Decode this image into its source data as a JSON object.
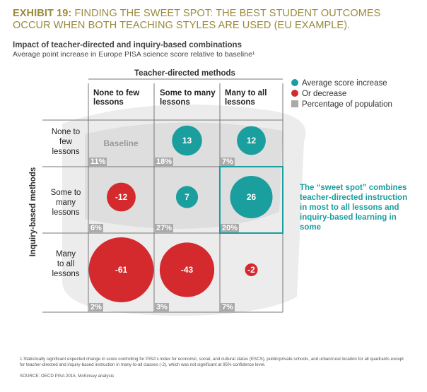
{
  "exhibit": {
    "label": "EXHIBIT 19:",
    "title": "FINDING THE SWEET SPOT: THE BEST STUDENT OUTCOMES OCCUR WHEN BOTH TEACHING STYLES ARE USED (EU EXAMPLE).",
    "subtitle": "Impact of teacher-directed and inquiry-based combinations",
    "subtitle2": "Average point increase in Europe PISA science score relative to baseline¹"
  },
  "axes": {
    "column_axis": "Teacher-directed methods",
    "row_axis": "Inquiry-based methods"
  },
  "columns": [
    "None to few\nlessons",
    "Some to many\nlessons",
    "Many to all\nlessons"
  ],
  "rows": [
    "None to\nfew\nlessons",
    "Some to\nmany\nlessons",
    "Many\nto all\nlessons"
  ],
  "baseline_label": "Baseline",
  "legend": [
    {
      "label": "Average score increase",
      "color": "#1a9e9e",
      "shape": "circle"
    },
    {
      "label": "Or decrease",
      "color": "#d42a2e",
      "shape": "circle"
    },
    {
      "label": "Percentage of population",
      "color": "#aaaaaa",
      "shape": "square"
    }
  ],
  "callout": "The “sweet spot” combines teacher-directed instruction in most to all lessons and inquiry-based learning in some",
  "footnote": "1 Statistically significant expected change in score controlling for PISA's index for economic, social, and cultural status (ESCS), public/private schools, and urban/rural location for all quadrants except for teacher-directed and inquiry-based instruction in many-to-all classes (-2), which was not significant at 95% confidence level.",
  "source": "SOURCE: OECD PISA 2015, McKinsey analysis",
  "colors": {
    "increase": "#1a9e9e",
    "decrease": "#d42a2e",
    "population": "#aaaaaa",
    "highlight": "#1a9e9e"
  },
  "chart_data": {
    "type": "bubble-matrix",
    "title": "Impact of teacher-directed and inquiry-based combinations",
    "xlabel": "Teacher-directed methods",
    "ylabel": "Inquiry-based methods",
    "x_categories": [
      "None to few lessons",
      "Some to many lessons",
      "Many to all lessons"
    ],
    "y_categories": [
      "None to few lessons",
      "Some to many lessons",
      "Many to all lessons"
    ],
    "cells": [
      {
        "row": 0,
        "col": 0,
        "value": null,
        "label": "Baseline",
        "population_pct": "11%"
      },
      {
        "row": 0,
        "col": 1,
        "value": 13,
        "label": "13",
        "population_pct": "18%"
      },
      {
        "row": 0,
        "col": 2,
        "value": 12,
        "label": "12",
        "population_pct": "7%"
      },
      {
        "row": 1,
        "col": 0,
        "value": -12,
        "label": "-12",
        "population_pct": "6%"
      },
      {
        "row": 1,
        "col": 1,
        "value": 7,
        "label": "7",
        "population_pct": "27%"
      },
      {
        "row": 1,
        "col": 2,
        "value": 26,
        "label": "26",
        "population_pct": "20%",
        "highlight": true
      },
      {
        "row": 2,
        "col": 0,
        "value": -61,
        "label": "-61",
        "population_pct": "2%"
      },
      {
        "row": 2,
        "col": 1,
        "value": -43,
        "label": "-43",
        "population_pct": "3%"
      },
      {
        "row": 2,
        "col": 2,
        "value": -2,
        "label": "-2",
        "population_pct": "7%"
      }
    ]
  }
}
